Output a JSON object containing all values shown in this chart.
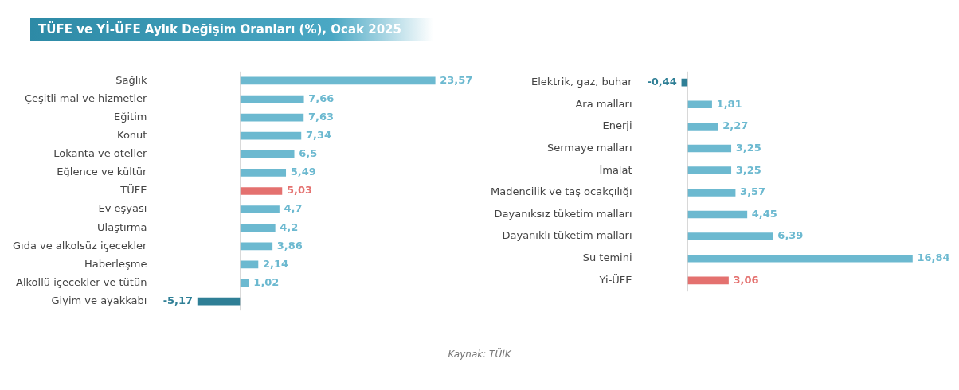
{
  "chart_data": [
    {
      "type": "bar",
      "orientation": "horizontal",
      "title": "TÜFE ve Yİ-ÜFE Aylık Değişim Oranları (%), Ocak 2025",
      "categories": [
        "Sağlık",
        "Çeşitli mal ve hizmetler",
        "Eğitim",
        "Konut",
        "Lokanta ve oteller",
        "Eğlence ve kültür",
        "TÜFE",
        "Ev eşyası",
        "Ulaştırma",
        "Gıda ve alkolsüz içecekler",
        "Haberleşme",
        "Alkollü içecekler ve tütün",
        "Giyim ve ayakkabı"
      ],
      "values": [
        23.57,
        7.66,
        7.63,
        7.34,
        6.5,
        5.49,
        5.03,
        4.7,
        4.2,
        3.86,
        2.14,
        1.02,
        -5.17
      ],
      "value_labels": [
        "23,57",
        "7,66",
        "7,63",
        "7,34",
        "6,5",
        "5,49",
        "5,03",
        "4,7",
        "4,2",
        "3,86",
        "2,14",
        "1,02",
        "-5,17"
      ],
      "colors": [
        "#6cb9d0",
        "#6cb9d0",
        "#6cb9d0",
        "#6cb9d0",
        "#6cb9d0",
        "#6cb9d0",
        "#e4716f",
        "#6cb9d0",
        "#6cb9d0",
        "#6cb9d0",
        "#6cb9d0",
        "#6cb9d0",
        "#2f7f96"
      ],
      "legend": false,
      "tick_labels": "y"
    },
    {
      "type": "bar",
      "orientation": "horizontal",
      "categories": [
        "Elektrik, gaz, buhar",
        "Ara malları",
        "Enerji",
        "Sermaye malları",
        "İmalat",
        "Madencilik ve taş ocakçılığı",
        "Dayanıksız tüketim malları",
        "Dayanıklı tüketim malları",
        "Su temini",
        "Yi-ÜFE"
      ],
      "values": [
        -0.44,
        1.81,
        2.27,
        3.25,
        3.25,
        3.57,
        4.45,
        6.39,
        16.84,
        3.06
      ],
      "value_labels": [
        "-0,44",
        "1,81",
        "2,27",
        "3,25",
        "3,25",
        "3,57",
        "4,45",
        "6,39",
        "16,84",
        "3,06"
      ],
      "colors": [
        "#2f7f96",
        "#6cb9d0",
        "#6cb9d0",
        "#6cb9d0",
        "#6cb9d0",
        "#6cb9d0",
        "#6cb9d0",
        "#6cb9d0",
        "#6cb9d0",
        "#e4716f"
      ],
      "legend": false,
      "tick_labels": "y",
      "annotations": [
        "Kaynak: TÜİK"
      ]
    }
  ]
}
